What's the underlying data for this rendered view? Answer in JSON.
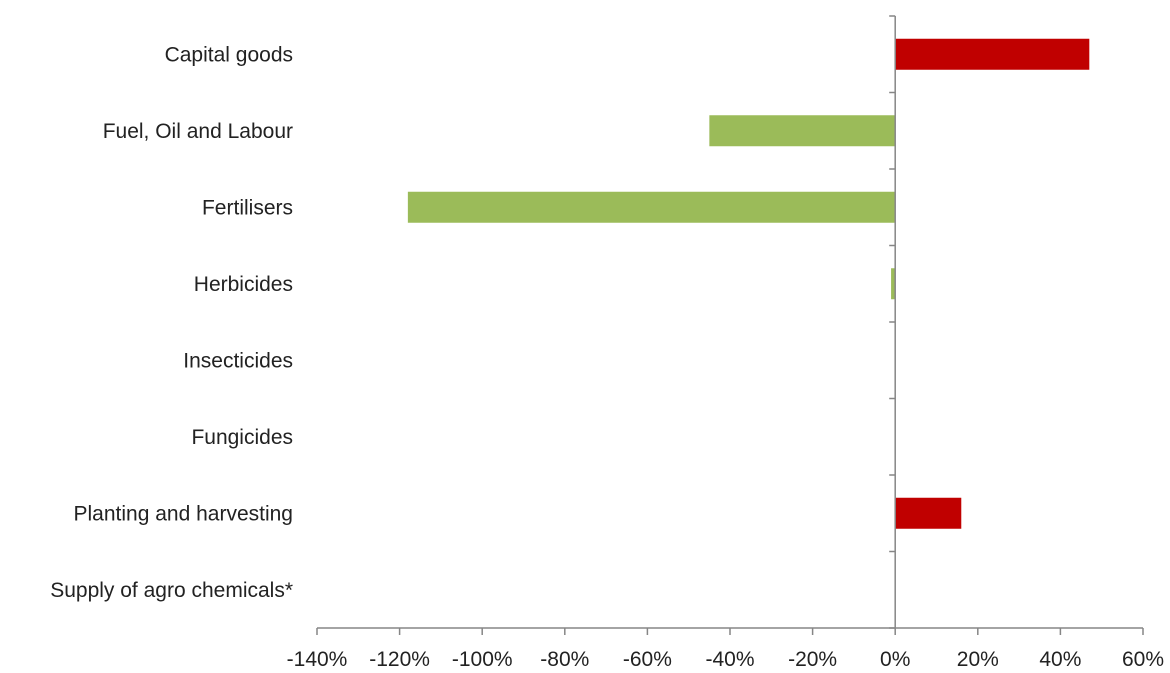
{
  "chart_data": {
    "type": "bar",
    "orientation": "horizontal",
    "categories": [
      "Capital goods",
      "Fuel, Oil and Labour",
      "Fertilisers",
      "Herbicides",
      "Insecticides",
      "Fungicides",
      "Planting and harvesting",
      "Supply of agro chemicals*"
    ],
    "values": [
      47,
      -45,
      -118,
      -1,
      0,
      0,
      16,
      0
    ],
    "xlim": [
      -140,
      60
    ],
    "x_ticks": [
      -140,
      -120,
      -100,
      -80,
      -60,
      -40,
      -20,
      0,
      20,
      40,
      60
    ],
    "x_tick_labels": [
      "-140%",
      "-120%",
      "-100%",
      "-80%",
      "-60%",
      "-40%",
      "-20%",
      "0%",
      "20%",
      "40%",
      "60%"
    ],
    "colors": {
      "positive": "#c00000",
      "negative": "#9bbb59",
      "axis": "#868686",
      "text": "#222222"
    },
    "grid": false,
    "legend": "none",
    "title": "",
    "xlabel": "",
    "ylabel": ""
  }
}
